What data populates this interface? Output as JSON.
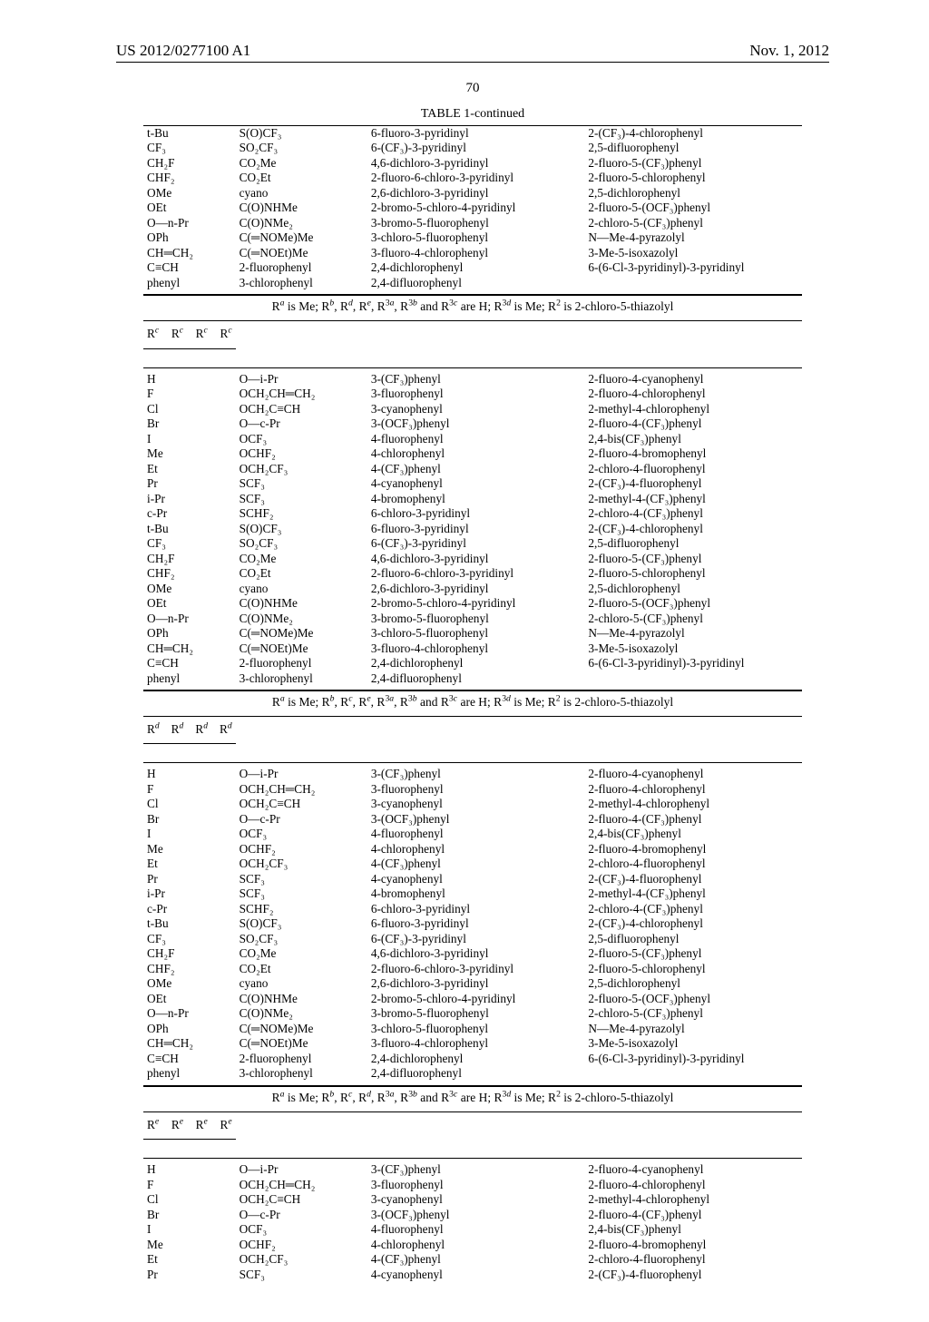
{
  "header": {
    "pub": "US 2012/0277100 A1",
    "date": "Nov. 1, 2012"
  },
  "pagenum": "70",
  "table_title": "TABLE 1-continued",
  "blocks": [
    {
      "show_condition": false,
      "show_header": false,
      "sym": "c",
      "rows": [
        [
          "t-Bu",
          "S(O)CF₃",
          "6-fluoro-3-pyridinyl",
          "2-(CF₃)-4-chlorophenyl"
        ],
        [
          "CF₃",
          "SO₂CF₃",
          "6-(CF₃)-3-pyridinyl",
          "2,5-difluorophenyl"
        ],
        [
          "CH₂F",
          "CO₂Me",
          "4,6-dichloro-3-pyridinyl",
          "2-fluoro-5-(CF₃)phenyl"
        ],
        [
          "CHF₂",
          "CO₂Et",
          "2-fluoro-6-chloro-3-pyridinyl",
          "2-fluoro-5-chlorophenyl"
        ],
        [
          "OMe",
          "cyano",
          "2,6-dichloro-3-pyridinyl",
          "2,5-dichlorophenyl"
        ],
        [
          "OEt",
          "C(O)NHMe",
          "2-bromo-5-chloro-4-pyridinyl",
          "2-fluoro-5-(OCF₃)phenyl"
        ],
        [
          "O—n-Pr",
          "C(O)NMe₂",
          "3-bromo-5-fluorophenyl",
          "2-chloro-5-(CF₃)phenyl"
        ],
        [
          "OPh",
          "C(=NOMe)Me",
          "3-chloro-5-fluorophenyl",
          "N—Me-4-pyrazolyl"
        ],
        [
          "CH=CH₂",
          "C(=NOEt)Me",
          "3-fluoro-4-chlorophenyl",
          "3-Me-5-isoxazolyl"
        ],
        [
          "C≡CH",
          "2-fluorophenyl",
          "2,4-dichlorophenyl",
          "6-(6-Cl-3-pyridinyl)-3-pyridinyl"
        ],
        [
          "phenyl",
          "3-chlorophenyl",
          "2,4-difluorophenyl",
          ""
        ]
      ]
    },
    {
      "show_condition": true,
      "show_header": true,
      "sym": "c",
      "condition_html": "R<sup><i>a</i></sup> is Me; R<sup><i>b</i></sup>, R<sup><i>d</i></sup>, R<sup><i>e</i></sup>, R<sup>3<i>a</i></sup>, R<sup>3<i>b</i></sup> and R<sup>3<i>c</i></sup> are H; R<sup>3<i>d</i></sup> is Me; R<sup>2</sup> is 2-chloro-5-thiazolyl",
      "rows": [
        [
          "H",
          "O—i-Pr",
          "3-(CF₃)phenyl",
          "2-fluoro-4-cyanophenyl"
        ],
        [
          "F",
          "OCH₂CH=CH₂",
          "3-fluorophenyl",
          "2-fluoro-4-chlorophenyl"
        ],
        [
          "Cl",
          "OCH₂C≡CH",
          "3-cyanophenyl",
          "2-methyl-4-chlorophenyl"
        ],
        [
          "Br",
          "O—c-Pr",
          "3-(OCF₃)phenyl",
          "2-fluoro-4-(CF₃)phenyl"
        ],
        [
          "I",
          "OCF₃",
          "4-fluorophenyl",
          "2,4-bis(CF₃)phenyl"
        ],
        [
          "Me",
          "OCHF₂",
          "4-chlorophenyl",
          "2-fluoro-4-bromophenyl"
        ],
        [
          "Et",
          "OCH₂CF₃",
          "4-(CF₃)phenyl",
          "2-chloro-4-fluorophenyl"
        ],
        [
          "Pr",
          "SCF₃",
          "4-cyanophenyl",
          "2-(CF₃)-4-fluorophenyl"
        ],
        [
          "i-Pr",
          "SCF₃",
          "4-bromophenyl",
          "2-methyl-4-(CF₃)phenyl"
        ],
        [
          "c-Pr",
          "SCHF₂",
          "6-chloro-3-pyridinyl",
          "2-chloro-4-(CF₃)phenyl"
        ],
        [
          "t-Bu",
          "S(O)CF₃",
          "6-fluoro-3-pyridinyl",
          "2-(CF₃)-4-chlorophenyl"
        ],
        [
          "CF₃",
          "SO₂CF₃",
          "6-(CF₃)-3-pyridinyl",
          "2,5-difluorophenyl"
        ],
        [
          "CH₂F",
          "CO₂Me",
          "4,6-dichloro-3-pyridinyl",
          "2-fluoro-5-(CF₃)phenyl"
        ],
        [
          "CHF₂",
          "CO₂Et",
          "2-fluoro-6-chloro-3-pyridinyl",
          "2-fluoro-5-chlorophenyl"
        ],
        [
          "OMe",
          "cyano",
          "2,6-dichloro-3-pyridinyl",
          "2,5-dichlorophenyl"
        ],
        [
          "OEt",
          "C(O)NHMe",
          "2-bromo-5-chloro-4-pyridinyl",
          "2-fluoro-5-(OCF₃)phenyl"
        ],
        [
          "O—n-Pr",
          "C(O)NMe₂",
          "3-bromo-5-fluorophenyl",
          "2-chloro-5-(CF₃)phenyl"
        ],
        [
          "OPh",
          "C(=NOMe)Me",
          "3-chloro-5-fluorophenyl",
          "N—Me-4-pyrazolyl"
        ],
        [
          "CH=CH₂",
          "C(=NOEt)Me",
          "3-fluoro-4-chlorophenyl",
          "3-Me-5-isoxazolyl"
        ],
        [
          "C≡CH",
          "2-fluorophenyl",
          "2,4-dichlorophenyl",
          "6-(6-Cl-3-pyridinyl)-3-pyridinyl"
        ],
        [
          "phenyl",
          "3-chlorophenyl",
          "2,4-difluorophenyl",
          ""
        ]
      ]
    },
    {
      "show_condition": true,
      "show_header": true,
      "sym": "d",
      "condition_html": "R<sup><i>a</i></sup> is Me; R<sup><i>b</i></sup>, R<sup><i>c</i></sup>, R<sup><i>e</i></sup>, R<sup>3<i>a</i></sup>, R<sup>3<i>b</i></sup> and R<sup>3<i>c</i></sup> are H; R<sup>3<i>d</i></sup> is Me; R<sup>2</sup> is 2-chloro-5-thiazolyl",
      "rows": [
        [
          "H",
          "O—i-Pr",
          "3-(CF₃)phenyl",
          "2-fluoro-4-cyanophenyl"
        ],
        [
          "F",
          "OCH₂CH=CH₂",
          "3-fluorophenyl",
          "2-fluoro-4-chlorophenyl"
        ],
        [
          "Cl",
          "OCH₂C≡CH",
          "3-cyanophenyl",
          "2-methyl-4-chlorophenyl"
        ],
        [
          "Br",
          "O—c-Pr",
          "3-(OCF₃)phenyl",
          "2-fluoro-4-(CF₃)phenyl"
        ],
        [
          "I",
          "OCF₃",
          "4-fluorophenyl",
          "2,4-bis(CF₃)phenyl"
        ],
        [
          "Me",
          "OCHF₂",
          "4-chlorophenyl",
          "2-fluoro-4-bromophenyl"
        ],
        [
          "Et",
          "OCH₂CF₃",
          "4-(CF₃)phenyl",
          "2-chloro-4-fluorophenyl"
        ],
        [
          "Pr",
          "SCF₃",
          "4-cyanophenyl",
          "2-(CF₃)-4-fluorophenyl"
        ],
        [
          "i-Pr",
          "SCF₃",
          "4-bromophenyl",
          "2-methyl-4-(CF₃)phenyl"
        ],
        [
          "c-Pr",
          "SCHF₂",
          "6-chloro-3-pyridinyl",
          "2-chloro-4-(CF₃)phenyl"
        ],
        [
          "t-Bu",
          "S(O)CF₃",
          "6-fluoro-3-pyridinyl",
          "2-(CF₃)-4-chlorophenyl"
        ],
        [
          "CF₃",
          "SO₂CF₃",
          "6-(CF₃)-3-pyridinyl",
          "2,5-difluorophenyl"
        ],
        [
          "CH₂F",
          "CO₂Me",
          "4,6-dichloro-3-pyridinyl",
          "2-fluoro-5-(CF₃)phenyl"
        ],
        [
          "CHF₂",
          "CO₂Et",
          "2-fluoro-6-chloro-3-pyridinyl",
          "2-fluoro-5-chlorophenyl"
        ],
        [
          "OMe",
          "cyano",
          "2,6-dichloro-3-pyridinyl",
          "2,5-dichlorophenyl"
        ],
        [
          "OEt",
          "C(O)NHMe",
          "2-bromo-5-chloro-4-pyridinyl",
          "2-fluoro-5-(OCF₃)phenyl"
        ],
        [
          "O—n-Pr",
          "C(O)NMe₂",
          "3-bromo-5-fluorophenyl",
          "2-chloro-5-(CF₃)phenyl"
        ],
        [
          "OPh",
          "C(=NOMe)Me",
          "3-chloro-5-fluorophenyl",
          "N—Me-4-pyrazolyl"
        ],
        [
          "CH=CH₂",
          "C(=NOEt)Me",
          "3-fluoro-4-chlorophenyl",
          "3-Me-5-isoxazolyl"
        ],
        [
          "C≡CH",
          "2-fluorophenyl",
          "2,4-dichlorophenyl",
          "6-(6-Cl-3-pyridinyl)-3-pyridinyl"
        ],
        [
          "phenyl",
          "3-chlorophenyl",
          "2,4-difluorophenyl",
          ""
        ]
      ]
    },
    {
      "show_condition": true,
      "show_header": true,
      "sym": "e",
      "condition_html": "R<sup><i>a</i></sup> is Me; R<sup><i>b</i></sup>, R<sup><i>c</i></sup>, R<sup><i>d</i></sup>, R<sup>3<i>a</i></sup>, R<sup>3<i>b</i></sup> and R<sup>3<i>c</i></sup> are H; R<sup>3<i>d</i></sup> is Me; R<sup>2</sup> is 2-chloro-5-thiazolyl",
      "rows": [
        [
          "H",
          "O—i-Pr",
          "3-(CF₃)phenyl",
          "2-fluoro-4-cyanophenyl"
        ],
        [
          "F",
          "OCH₂CH=CH₂",
          "3-fluorophenyl",
          "2-fluoro-4-chlorophenyl"
        ],
        [
          "Cl",
          "OCH₂C≡CH",
          "3-cyanophenyl",
          "2-methyl-4-chlorophenyl"
        ],
        [
          "Br",
          "O—c-Pr",
          "3-(OCF₃)phenyl",
          "2-fluoro-4-(CF₃)phenyl"
        ],
        [
          "I",
          "OCF₃",
          "4-fluorophenyl",
          "2,4-bis(CF₃)phenyl"
        ],
        [
          "Me",
          "OCHF₂",
          "4-chlorophenyl",
          "2-fluoro-4-bromophenyl"
        ],
        [
          "Et",
          "OCH₂CF₃",
          "4-(CF₃)phenyl",
          "2-chloro-4-fluorophenyl"
        ],
        [
          "Pr",
          "SCF₃",
          "4-cyanophenyl",
          "2-(CF₃)-4-fluorophenyl"
        ]
      ]
    }
  ]
}
